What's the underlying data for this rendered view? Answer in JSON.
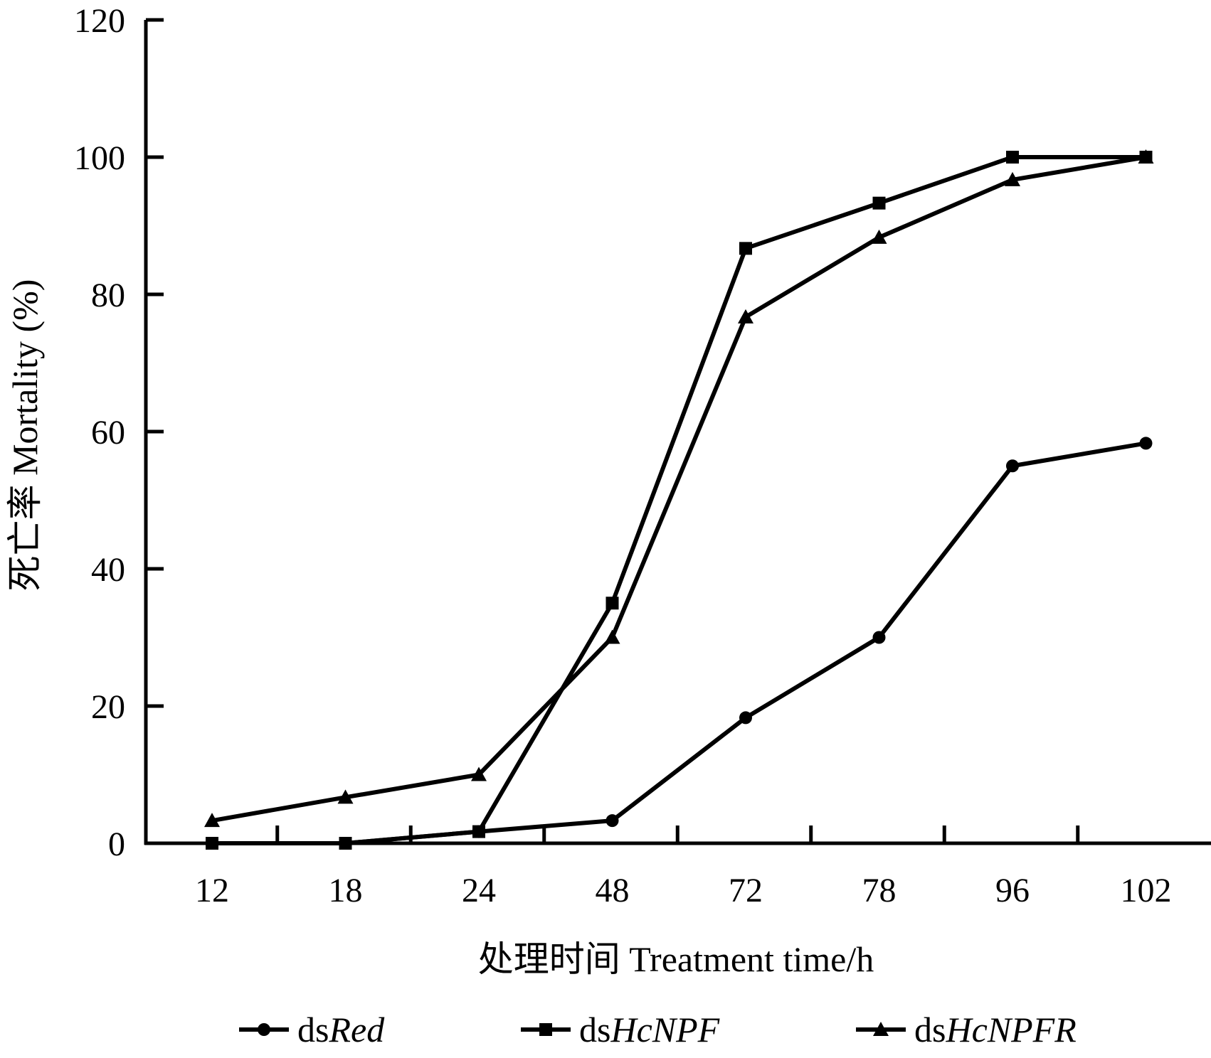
{
  "chart_data": {
    "type": "line",
    "categories": [
      "12",
      "18",
      "24",
      "48",
      "72",
      "78",
      "96",
      "102"
    ],
    "series": [
      {
        "name": "dsRed",
        "name_plain": "ds",
        "name_italic": "Red",
        "marker": "circle",
        "values": [
          0,
          0,
          1.7,
          3.3,
          18.3,
          30,
          55,
          58.3
        ]
      },
      {
        "name": "dsHcNPF",
        "name_plain": "ds",
        "name_italic": "HcNPF",
        "marker": "square",
        "values": [
          0,
          0,
          1.7,
          35,
          86.7,
          93.3,
          100,
          100
        ]
      },
      {
        "name": "dsHcNPFR",
        "name_plain": "ds",
        "name_italic": "HcNPFR",
        "marker": "triangle",
        "values": [
          3.3,
          6.7,
          10,
          30,
          76.7,
          88.3,
          96.7,
          100
        ]
      }
    ],
    "xlabel": "处理时间  Treatment time/h",
    "ylabel": "死亡率  Mortality (%)",
    "ylim": [
      0,
      120
    ],
    "yticks": [
      "0",
      "20",
      "40",
      "60",
      "80",
      "100",
      "120"
    ],
    "grid": false,
    "legend_position": "bottom",
    "line_color": "#000000"
  }
}
